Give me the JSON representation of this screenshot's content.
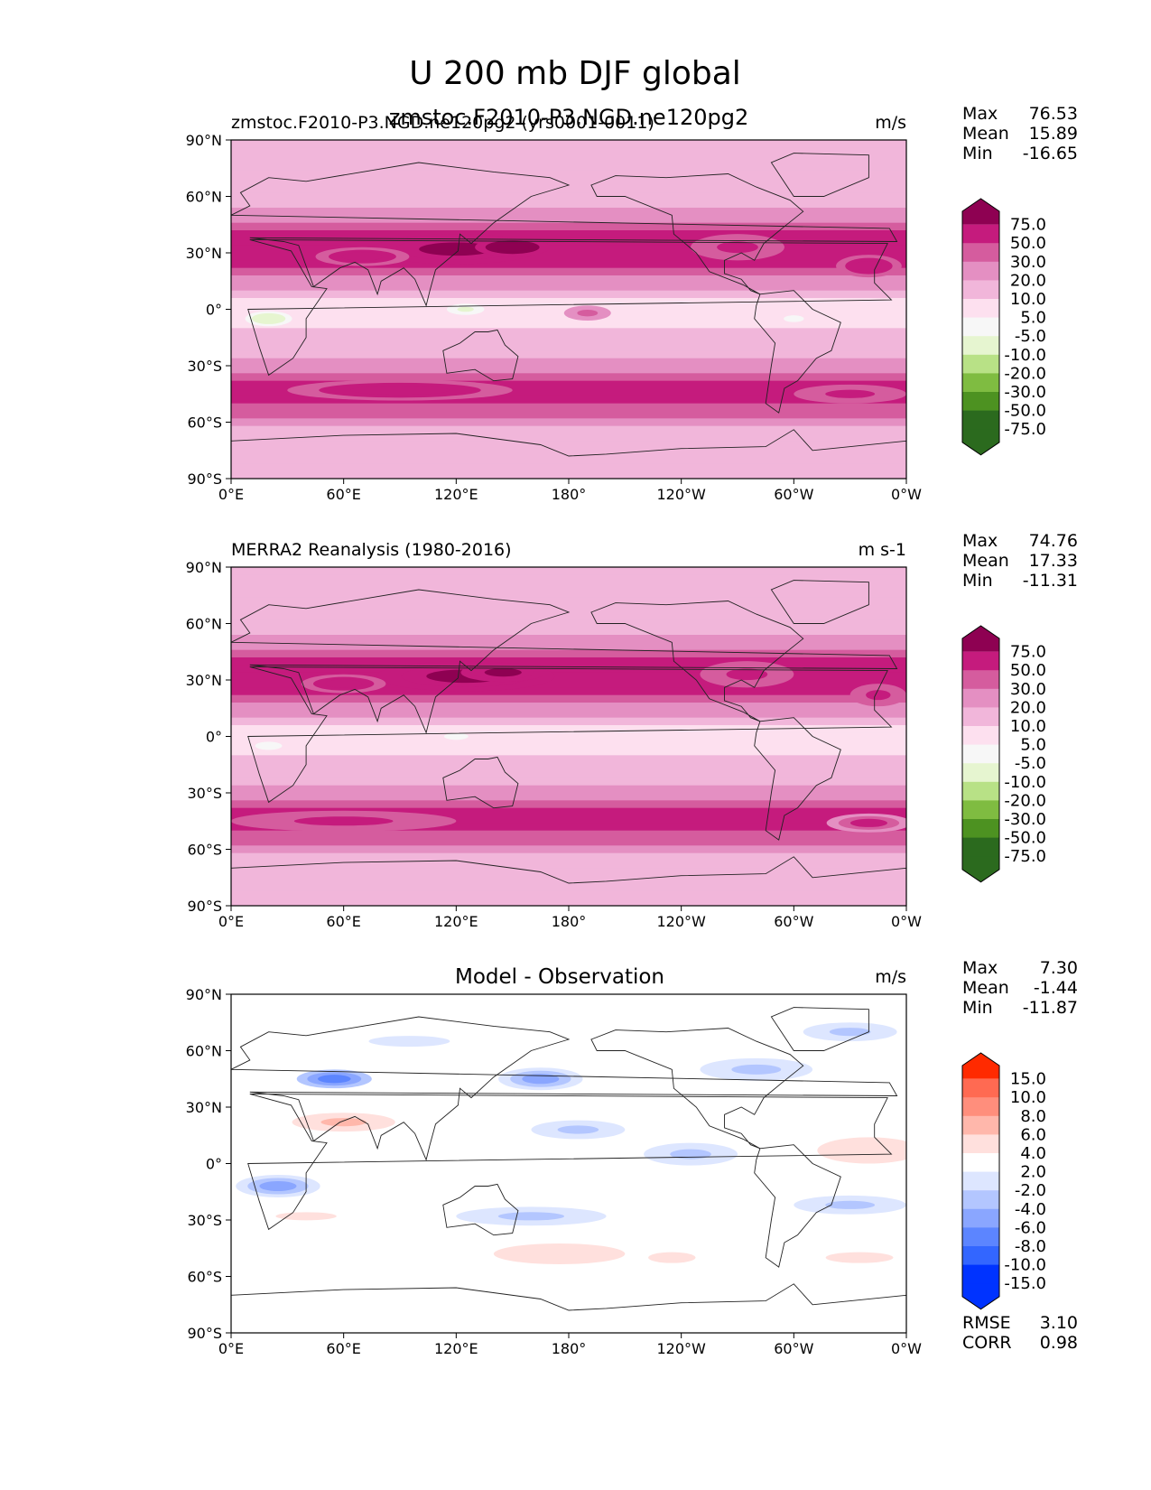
{
  "figure": {
    "title": "U 200 mb DJF global",
    "overlap_text": "zmstoc.F2010-P3.NGD.ne120pg2"
  },
  "colors": {
    "ocean_bg": "#f7f7f7",
    "coast": "#222222",
    "abs_fill": [
      "#2b6a1e",
      "#4d9221",
      "#7fbc41",
      "#b8e186",
      "#e6f5d0",
      "#f7f7f7",
      "#fde0ef",
      "#f1b6da",
      "#e48fc2",
      "#d55c9e",
      "#c51b7d",
      "#8e0152"
    ],
    "diff_fill": [
      "#0033ff",
      "#3366ff",
      "#5c85ff",
      "#8aa6ff",
      "#b3c6ff",
      "#dde6ff",
      "#ffffff",
      "#ffe0dd",
      "#ffb7ab",
      "#ff8e7c",
      "#ff6a52",
      "#ff2a00"
    ]
  },
  "chart_data": [
    {
      "type": "heatmap",
      "panel": "model",
      "title_left": "zmstoc.F2010-P3.NGD.ne120pg2 (yrs0001-0011)",
      "title_center": "",
      "title_right": "m/s",
      "stats": {
        "labels": [
          "Max",
          "Mean",
          "Min"
        ],
        "values": [
          "76.53",
          "15.89",
          "-16.65"
        ]
      },
      "colorbar": {
        "levels": [
          "75.0",
          "50.0",
          "30.0",
          "20.0",
          "10.0",
          "5.0",
          "-5.0",
          "-10.0",
          "-20.0",
          "-30.0",
          "-50.0",
          "-75.0"
        ]
      },
      "xticks": [
        "0°E",
        "60°E",
        "120°E",
        "180°",
        "120°W",
        "60°W",
        "0°W"
      ],
      "yticks": [
        "90°N",
        "60°N",
        "30°N",
        "0°",
        "30°S",
        "60°S",
        "90°S"
      ],
      "xlim": [
        0,
        360
      ],
      "ylim": [
        -90,
        90
      ],
      "field": "jets",
      "jets": [
        {
          "lon": 120,
          "lat": 32,
          "width": 90,
          "height": 16,
          "value": 55
        },
        {
          "lon": 150,
          "lat": 33,
          "width": 40,
          "height": 10,
          "value": 65
        },
        {
          "lon": 70,
          "lat": 28,
          "width": 50,
          "height": 10,
          "value": 45
        },
        {
          "lon": 270,
          "lat": 33,
          "width": 50,
          "height": 14,
          "value": 38
        },
        {
          "lon": 340,
          "lat": 23,
          "width": 35,
          "height": 12,
          "value": 40
        },
        {
          "lon": 90,
          "lat": -43,
          "width": 120,
          "height": 11,
          "value": 40
        },
        {
          "lon": 330,
          "lat": -45,
          "width": 60,
          "height": 10,
          "value": 38
        },
        {
          "lon": 190,
          "lat": -2,
          "width": 25,
          "height": 8,
          "value": 25
        },
        {
          "lon": 20,
          "lat": -5,
          "width": 25,
          "height": 8,
          "value": -15
        },
        {
          "lon": 125,
          "lat": 0,
          "width": 20,
          "height": 6,
          "value": -12
        },
        {
          "lon": 300,
          "lat": -5,
          "width": 15,
          "height": 5,
          "value": -8
        }
      ]
    },
    {
      "type": "heatmap",
      "panel": "observation",
      "title_left": "MERRA2 Reanalysis (1980-2016)",
      "title_center": "",
      "title_right": "m s-1",
      "stats": {
        "labels": [
          "Max",
          "Mean",
          "Min"
        ],
        "values": [
          "74.76",
          "17.33",
          "-11.31"
        ]
      },
      "colorbar": {
        "levels": [
          "75.0",
          "50.0",
          "30.0",
          "20.0",
          "10.0",
          "5.0",
          "-5.0",
          "-10.0",
          "-20.0",
          "-30.0",
          "-50.0",
          "-75.0"
        ]
      },
      "xticks": [
        "0°E",
        "60°E",
        "120°E",
        "180°",
        "120°W",
        "60°W",
        "0°W"
      ],
      "yticks": [
        "90°N",
        "60°N",
        "30°N",
        "0°",
        "30°S",
        "60°S",
        "90°S"
      ],
      "xlim": [
        0,
        360
      ],
      "ylim": [
        -90,
        90
      ],
      "field": "jets",
      "jets": [
        {
          "lon": 125,
          "lat": 32,
          "width": 95,
          "height": 16,
          "value": 55
        },
        {
          "lon": 145,
          "lat": 34,
          "width": 45,
          "height": 10,
          "value": 62
        },
        {
          "lon": 60,
          "lat": 28,
          "width": 45,
          "height": 10,
          "value": 45
        },
        {
          "lon": 275,
          "lat": 33,
          "width": 50,
          "height": 14,
          "value": 38
        },
        {
          "lon": 345,
          "lat": 22,
          "width": 30,
          "height": 12,
          "value": 38
        },
        {
          "lon": 60,
          "lat": -45,
          "width": 120,
          "height": 11,
          "value": 38
        },
        {
          "lon": 340,
          "lat": -46,
          "width": 45,
          "height": 10,
          "value": 36
        },
        {
          "lon": 20,
          "lat": -5,
          "width": 20,
          "height": 6,
          "value": -9
        },
        {
          "lon": 120,
          "lat": 0,
          "width": 18,
          "height": 5,
          "value": -8
        }
      ]
    },
    {
      "type": "heatmap",
      "panel": "difference",
      "title_left": "",
      "title_center": "Model - Observation",
      "title_right": "m/s",
      "stats": {
        "labels": [
          "Max",
          "Mean",
          "Min"
        ],
        "values": [
          "7.30",
          "-1.44",
          "-11.87"
        ]
      },
      "metrics": {
        "labels": [
          "RMSE",
          "CORR"
        ],
        "values": [
          "3.10",
          "0.98"
        ]
      },
      "colorbar": {
        "levels": [
          "15.0",
          "10.0",
          "8.0",
          "6.0",
          "4.0",
          "2.0",
          "-2.0",
          "-4.0",
          "-6.0",
          "-8.0",
          "-10.0",
          "-15.0"
        ]
      },
      "xticks": [
        "0°E",
        "60°E",
        "120°E",
        "180°",
        "120°W",
        "60°W",
        "0°W"
      ],
      "yticks": [
        "90°N",
        "60°N",
        "30°N",
        "0°",
        "30°S",
        "60°S",
        "90°S"
      ],
      "xlim": [
        0,
        360
      ],
      "ylim": [
        -90,
        90
      ],
      "field": "anomalies",
      "anomalies": [
        {
          "lon": 55,
          "lat": 45,
          "width": 40,
          "height": 10,
          "value": -8
        },
        {
          "lon": 165,
          "lat": 45,
          "width": 45,
          "height": 12,
          "value": -6
        },
        {
          "lon": 280,
          "lat": 50,
          "width": 60,
          "height": 12,
          "value": -4
        },
        {
          "lon": 60,
          "lat": 22,
          "width": 55,
          "height": 10,
          "value": 5
        },
        {
          "lon": 340,
          "lat": 7,
          "width": 55,
          "height": 14,
          "value": 4
        },
        {
          "lon": 245,
          "lat": 5,
          "width": 50,
          "height": 12,
          "value": -5
        },
        {
          "lon": 185,
          "lat": 18,
          "width": 50,
          "height": 10,
          "value": -4
        },
        {
          "lon": 25,
          "lat": -12,
          "width": 45,
          "height": 12,
          "value": -6
        },
        {
          "lon": 160,
          "lat": -28,
          "width": 80,
          "height": 10,
          "value": -5
        },
        {
          "lon": 330,
          "lat": -22,
          "width": 60,
          "height": 10,
          "value": -5
        },
        {
          "lon": 175,
          "lat": -48,
          "width": 70,
          "height": 11,
          "value": 4
        },
        {
          "lon": 235,
          "lat": -50,
          "width": 35,
          "height": 8,
          "value": 3
        },
        {
          "lon": 335,
          "lat": -50,
          "width": 50,
          "height": 8,
          "value": 3
        },
        {
          "lon": 40,
          "lat": -28,
          "width": 45,
          "height": 6,
          "value": 3
        },
        {
          "lon": 95,
          "lat": 65,
          "width": 60,
          "height": 8,
          "value": -3
        },
        {
          "lon": 330,
          "lat": 70,
          "width": 50,
          "height": 10,
          "value": -4
        }
      ]
    }
  ]
}
